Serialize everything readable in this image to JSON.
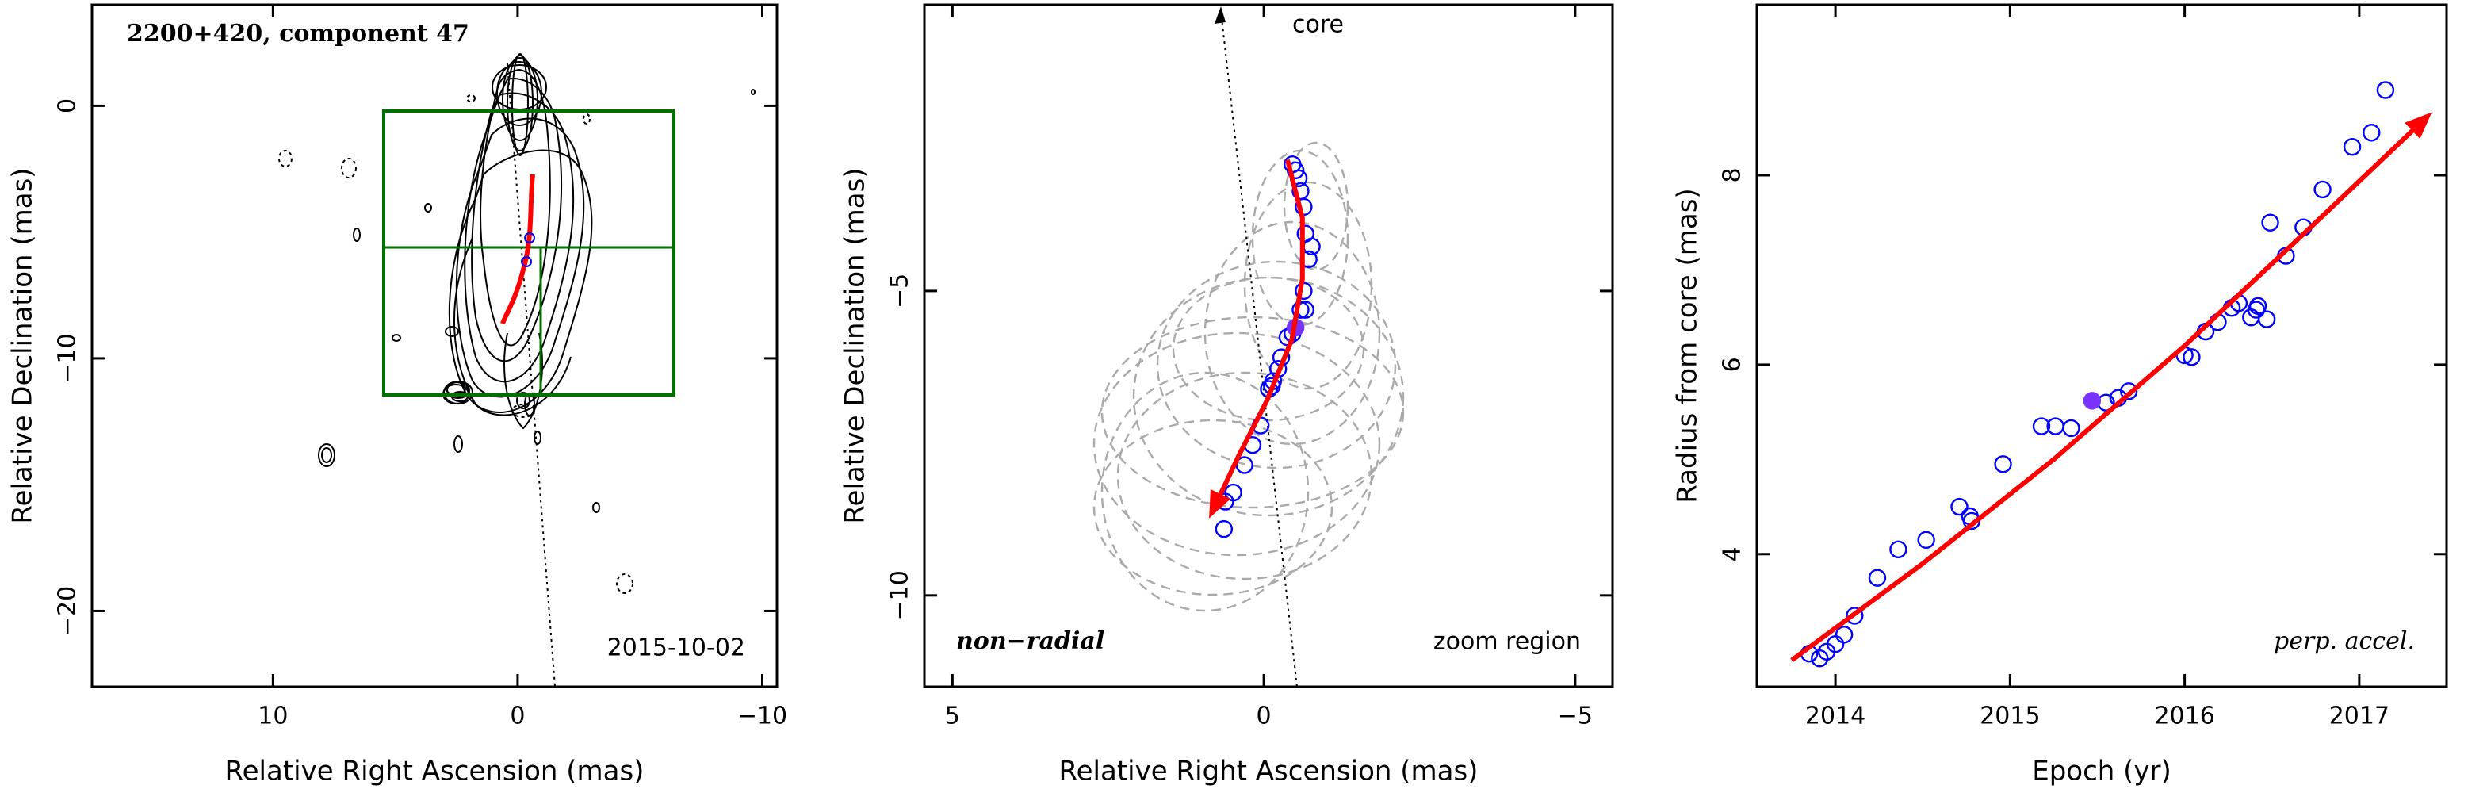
{
  "chart_data": [
    {
      "type": "contour",
      "title": "2200+420, component 47",
      "annotation": "2015-10-02",
      "x_label": "Relative Right Ascension (mas)",
      "y_label": "Relative Declination (mas)",
      "xlim": [
        17.4,
        -10.6
      ],
      "ylim": [
        -23,
        4
      ],
      "xticks": [
        10,
        0,
        {
          "value": -10,
          "label": "−10"
        }
      ],
      "yticks": [
        0,
        {
          "value": -10,
          "label": "−10"
        },
        {
          "value": -20,
          "label": "−20"
        }
      ]
    },
    {
      "type": "scatter",
      "annotations": [
        "core",
        "non−radial",
        "zoom region"
      ],
      "x_label": "Relative Right Ascension (mas)",
      "y_label": "Relative Declination (mas)",
      "xlim": [
        5.45,
        -5.6
      ],
      "ylim": [
        -11.5,
        -0.3
      ],
      "xticks": [
        5,
        0,
        {
          "value": -5,
          "label": "−5"
        }
      ],
      "yticks": [
        {
          "value": -5,
          "label": "−5"
        },
        {
          "value": -10,
          "label": "−10"
        }
      ],
      "series": [
        {
          "marker": "open",
          "color": "#0000ff",
          "x": [
            -0.46,
            -0.51,
            -0.56,
            -0.59,
            -0.64,
            -0.67,
            -0.77,
            -0.72,
            -0.64,
            -0.67,
            -0.59,
            -0.46,
            -0.38,
            -0.28,
            -0.23,
            -0.15,
            -0.13,
            -0.08,
            0.05,
            0.18,
            0.31,
            0.49,
            0.62,
            0.64
          ],
          "values": [
            -2.92,
            -3.02,
            -3.15,
            -3.36,
            -3.62,
            -4.06,
            -4.27,
            -4.48,
            -5.0,
            -5.31,
            -5.31,
            -5.7,
            -5.76,
            -6.09,
            -6.28,
            -6.48,
            -6.56,
            -6.61,
            -7.21,
            -7.53,
            -7.86,
            -8.31,
            -8.46,
            -8.91
          ]
        },
        {
          "marker": "filled",
          "color": "#7a33ff",
          "x": [
            -0.51
          ],
          "values": [
            -5.6
          ]
        },
        {
          "marker": "arrow",
          "color": "#ff0000",
          "x": [
            -0.38,
            -0.62,
            -0.62,
            -0.45,
            -0.05,
            0.4,
            0.77
          ],
          "values": [
            -2.85,
            -3.8,
            -4.8,
            -5.8,
            -6.8,
            -7.7,
            -8.5
          ]
        }
      ]
    },
    {
      "type": "scatter",
      "annotations": [
        "perp. accel."
      ],
      "x_label": "Epoch (yr)",
      "y_label": "Radius from core (mas)",
      "xlim": [
        2013.55,
        2017.5
      ],
      "ylim": [
        2.6,
        9.8
      ],
      "xticks": [
        2014,
        2015,
        2016,
        2017
      ],
      "yticks": [
        4,
        6,
        8
      ],
      "series": [
        {
          "marker": "open",
          "color": "#0000ff",
          "x": [
            2013.85,
            2013.91,
            2013.95,
            2014.0,
            2014.05,
            2014.11,
            2014.24,
            2014.36,
            2014.52,
            2014.71,
            2014.77,
            2014.78,
            2014.96,
            2015.18,
            2015.26,
            2015.35,
            2015.55,
            2015.62,
            2015.68,
            2016.0,
            2016.04,
            2016.12,
            2016.19,
            2016.27,
            2016.31,
            2016.38,
            2016.41,
            2016.42,
            2016.47,
            2016.49,
            2016.58,
            2016.68,
            2016.79,
            2016.96,
            2017.07,
            2017.15
          ],
          "values": [
            2.95,
            2.9,
            2.97,
            3.05,
            3.15,
            3.35,
            3.75,
            4.05,
            4.15,
            4.5,
            4.4,
            4.35,
            4.95,
            5.35,
            5.35,
            5.33,
            5.6,
            5.65,
            5.72,
            6.1,
            6.08,
            6.35,
            6.45,
            6.6,
            6.65,
            6.5,
            6.58,
            6.62,
            6.48,
            7.5,
            7.15,
            7.45,
            7.85,
            8.3,
            8.45,
            8.9
          ]
        },
        {
          "marker": "filled",
          "color": "#7a33ff",
          "x": [
            2015.47
          ],
          "values": [
            5.62
          ]
        },
        {
          "marker": "arrow",
          "color": "#ff0000",
          "x": [
            2013.75,
            2014.5,
            2015.25,
            2016.0,
            2016.75,
            2017.35
          ],
          "values": [
            2.88,
            3.9,
            5.0,
            6.2,
            7.5,
            8.55
          ]
        }
      ]
    }
  ]
}
